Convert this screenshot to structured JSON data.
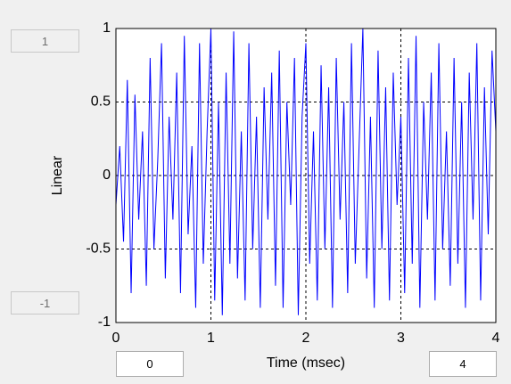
{
  "chart_data": {
    "type": "line",
    "xlabel": "Time (msec)",
    "ylabel": "Linear",
    "x": [
      0,
      0.04,
      0.08,
      0.12,
      0.16,
      0.2,
      0.24,
      0.28,
      0.32,
      0.36,
      0.4,
      0.44,
      0.48,
      0.52,
      0.56,
      0.6,
      0.64,
      0.68,
      0.72,
      0.76,
      0.8,
      0.84,
      0.88,
      0.92,
      0.96,
      1,
      1.04,
      1.08,
      1.12,
      1.16,
      1.2,
      1.24,
      1.28,
      1.32,
      1.36,
      1.4,
      1.44,
      1.48,
      1.52,
      1.56,
      1.6,
      1.64,
      1.68,
      1.72,
      1.76,
      1.8,
      1.84,
      1.88,
      1.92,
      1.96,
      2,
      2.04,
      2.08,
      2.12,
      2.16,
      2.2,
      2.24,
      2.28,
      2.32,
      2.36,
      2.4,
      2.44,
      2.48,
      2.52,
      2.56,
      2.6,
      2.64,
      2.68,
      2.72,
      2.76,
      2.8,
      2.84,
      2.88,
      2.92,
      2.96,
      3,
      3.04,
      3.08,
      3.12,
      3.16,
      3.2,
      3.24,
      3.28,
      3.32,
      3.36,
      3.4,
      3.44,
      3.48,
      3.52,
      3.56,
      3.6,
      3.64,
      3.68,
      3.72,
      3.76,
      3.8,
      3.84,
      3.88,
      3.92,
      3.96,
      4
    ],
    "series": [
      {
        "color": "#0000ff",
        "values": [
          -0.2,
          0.2,
          -0.45,
          0.65,
          -0.8,
          0.55,
          -0.3,
          0.3,
          -0.75,
          0.8,
          -0.5,
          0.1,
          0.9,
          -0.7,
          0.4,
          -0.3,
          0.7,
          -0.8,
          0.95,
          -0.4,
          0.2,
          -0.9,
          0.9,
          -0.6,
          0.3,
          1.0,
          -0.85,
          0.5,
          -0.95,
          0.7,
          -0.6,
          0.98,
          -0.7,
          0.3,
          -0.85,
          0.9,
          -0.5,
          0.4,
          -0.9,
          0.6,
          -0.3,
          0.7,
          -0.75,
          0.85,
          -0.9,
          0.5,
          -0.2,
          0.8,
          -0.95,
          0.4,
          0.9,
          -0.6,
          0.3,
          -0.85,
          0.75,
          -0.5,
          0.6,
          -0.9,
          0.8,
          -0.3,
          0.5,
          -0.8,
          0.9,
          -0.6,
          0.2,
          1.0,
          -0.7,
          0.4,
          -0.9,
          0.85,
          -0.5,
          0.6,
          -0.85,
          0.7,
          -0.2,
          0.4,
          -0.8,
          0.8,
          -0.6,
          0.95,
          -0.9,
          0.5,
          -0.3,
          0.7,
          -0.85,
          0.9,
          -0.5,
          0.3,
          -0.75,
          0.8,
          -0.6,
          0.5,
          -0.9,
          0.7,
          -0.3,
          0.9,
          -0.85,
          0.6,
          -0.4,
          0.85,
          0.3
        ]
      }
    ],
    "xlim": [
      0,
      4
    ],
    "ylim": [
      -1,
      1
    ],
    "xticks": [
      0,
      1,
      2,
      3,
      4
    ],
    "yticks": [
      -1,
      -0.5,
      0,
      0.5,
      1
    ],
    "grid": true
  },
  "controls": {
    "y_max": "1",
    "y_min": "-1",
    "x_min": "0",
    "x_max": "4"
  }
}
